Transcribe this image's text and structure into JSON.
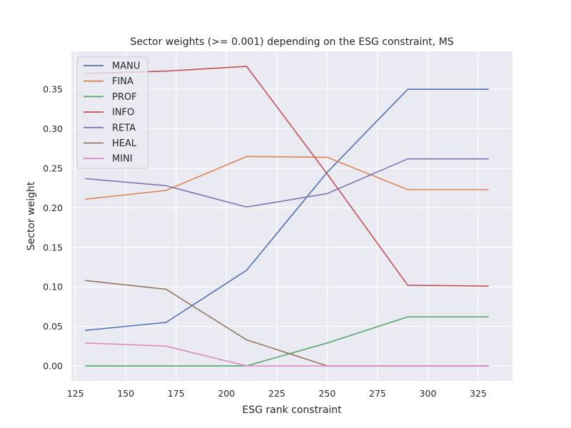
{
  "chart_data": {
    "type": "line",
    "title": "Sector weights (>= 0.001) depending on the ESG constraint, MS",
    "xlabel": "ESG rank constraint",
    "ylabel": "Sector weight",
    "x": [
      130,
      170,
      210,
      250,
      290,
      330
    ],
    "xlim": [
      123,
      342
    ],
    "ylim": [
      -0.019,
      0.398
    ],
    "xticks": [
      125,
      150,
      175,
      200,
      225,
      250,
      275,
      300,
      325
    ],
    "yticks": [
      0.0,
      0.05,
      0.1,
      0.15,
      0.2,
      0.25,
      0.3,
      0.35
    ],
    "ytick_labels": [
      "0.00",
      "0.05",
      "0.10",
      "0.15",
      "0.20",
      "0.25",
      "0.30",
      "0.35"
    ],
    "grid": true,
    "legend_position": "top-left",
    "series": [
      {
        "name": "MANU",
        "color": "#4c72b0",
        "values": [
          0.045,
          0.055,
          0.121,
          0.245,
          0.35,
          0.35
        ]
      },
      {
        "name": "FINA",
        "color": "#dd8452",
        "values": [
          0.211,
          0.222,
          0.265,
          0.264,
          0.223,
          0.223
        ]
      },
      {
        "name": "PROF",
        "color": "#55a868",
        "values": [
          0.0,
          0.0,
          0.0,
          0.029,
          0.062,
          0.062
        ]
      },
      {
        "name": "INFO",
        "color": "#c44e52",
        "values": [
          0.37,
          0.373,
          0.379,
          0.243,
          0.102,
          0.101
        ]
      },
      {
        "name": "RETA",
        "color": "#8172b3",
        "values": [
          0.237,
          0.228,
          0.201,
          0.218,
          0.262,
          0.262
        ]
      },
      {
        "name": "HEAL",
        "color": "#937860",
        "values": [
          0.108,
          0.097,
          0.033,
          0.0,
          0.0,
          0.0
        ]
      },
      {
        "name": "MINI",
        "color": "#da8bc3",
        "values": [
          0.029,
          0.025,
          0.0,
          0.0,
          0.0,
          0.0
        ]
      }
    ]
  }
}
